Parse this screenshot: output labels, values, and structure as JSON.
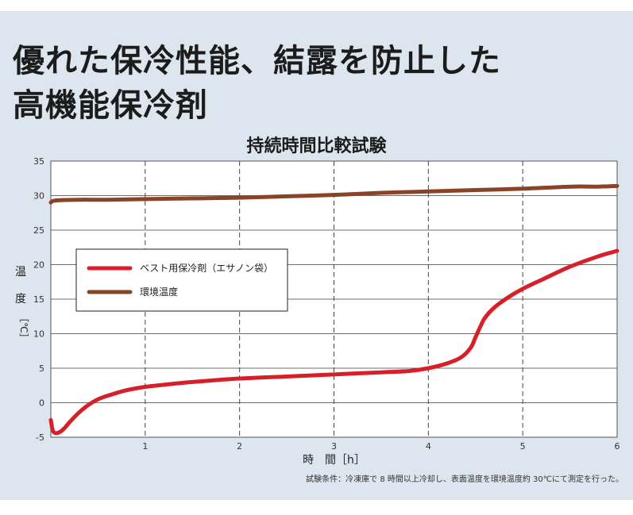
{
  "headline": {
    "line1": "優れた保冷性能、結露を防止した",
    "line2": "高機能保冷剤"
  },
  "footnote": "試験条件：冷凍庫で 8 時間以上冷却し、表面温度を環境温度約 30℃にて測定を行った。",
  "colors": {
    "background_panel": "#dde6ee",
    "plot_background": "#ffffff",
    "best_series": "#d71f2a",
    "ambient_series": "#8b4327"
  },
  "chart_data": {
    "type": "line",
    "title": "持続時間比較試験",
    "xlabel": "時　間［h］",
    "ylabel": [
      "温",
      "度",
      "［℃］"
    ],
    "xlim": [
      0,
      6
    ],
    "ylim": [
      -5,
      35
    ],
    "xticks": [
      1,
      2,
      3,
      4,
      5,
      6
    ],
    "yticks": [
      35,
      30,
      25,
      20,
      15,
      10,
      5,
      0,
      -5
    ],
    "grid": {
      "horizontal": "solid",
      "vertical": "dashed"
    },
    "legend_position": "left-middle",
    "series": [
      {
        "name": "ベスト用保冷剤（エサノン袋）",
        "color": "#d71f2a",
        "x": [
          0,
          0.02,
          0.05,
          0.1,
          0.15,
          0.2,
          0.3,
          0.4,
          0.5,
          0.6,
          0.8,
          1.0,
          1.2,
          1.5,
          2.0,
          2.5,
          3.0,
          3.5,
          3.8,
          4.0,
          4.2,
          4.35,
          4.45,
          4.5,
          4.55,
          4.6,
          4.7,
          4.85,
          5.0,
          5.2,
          5.5,
          5.8,
          6.0
        ],
        "y": [
          -2.5,
          -4.0,
          -4.4,
          -4.2,
          -3.6,
          -2.8,
          -1.4,
          -0.3,
          0.5,
          1.0,
          1.8,
          2.3,
          2.6,
          3.0,
          3.5,
          3.8,
          4.1,
          4.4,
          4.6,
          5.0,
          5.7,
          6.6,
          8.0,
          9.5,
          11.0,
          12.3,
          13.8,
          15.3,
          16.5,
          17.8,
          19.7,
          21.2,
          22.0
        ]
      },
      {
        "name": "環境温度",
        "color": "#8b4327",
        "x": [
          0,
          0.05,
          0.3,
          0.6,
          1.0,
          1.5,
          2.0,
          2.5,
          3.0,
          3.5,
          4.0,
          4.5,
          5.0,
          5.5,
          5.8,
          6.0
        ],
        "y": [
          29.0,
          29.3,
          29.4,
          29.4,
          29.5,
          29.6,
          29.7,
          29.9,
          30.1,
          30.4,
          30.6,
          30.8,
          31.0,
          31.3,
          31.3,
          31.4
        ]
      }
    ]
  }
}
